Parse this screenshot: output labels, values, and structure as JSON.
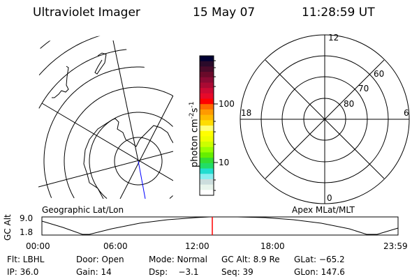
{
  "header": {
    "instrument": "Ultraviolet Imager",
    "date": "15 May 07",
    "time": "11:28:59 UT"
  },
  "colorbar": {
    "label": "photon cm",
    "label_sup1": "-2",
    "label_mid": "s",
    "label_sup2": "-1",
    "ticks": [
      "100",
      "10"
    ],
    "colors": [
      "#000033",
      "#2a0a2a",
      "#4a0a2a",
      "#6a0a2a",
      "#8a0a33",
      "#aa0a33",
      "#cc0a33",
      "#e60a2a",
      "#ff0000",
      "#ff6a00",
      "#ff9a00",
      "#ffbb00",
      "#ffdd00",
      "#ffff77",
      "#ffff00",
      "#eeff00",
      "#ccff00",
      "#99ff00",
      "#66ee00",
      "#33dd33",
      "#22dd66",
      "#22ddd0",
      "#88eef0",
      "#ccdddd",
      "#e8f4ec",
      "#ffffff"
    ]
  },
  "map_left": {
    "label": "Geographic Lat/Lon",
    "track_color": "#0000ff"
  },
  "map_right": {
    "label": "Apex MLat/MLT",
    "mlt_labels": [
      "12",
      "18",
      "6",
      "0"
    ],
    "lat_labels": [
      "60",
      "70",
      "80"
    ]
  },
  "altitude_plot": {
    "ylabel": "GC Alt",
    "yticks": [
      "9.0",
      "1.8"
    ],
    "xticks": [
      "00:00",
      "06:00",
      "12:00",
      "18:00",
      "23:59"
    ],
    "marker_color": "#ff0000"
  },
  "status": {
    "row1": [
      "Flt: LBHL",
      "Door: Open",
      "Mode: Normal",
      "GC Alt: 8.9 Re",
      "GLat: −65.2"
    ],
    "row2": [
      "IP: 36.0",
      "Gain: 14",
      "Dsp:    −3.1",
      "Seq: 39",
      "GLon: 147.6"
    ]
  }
}
